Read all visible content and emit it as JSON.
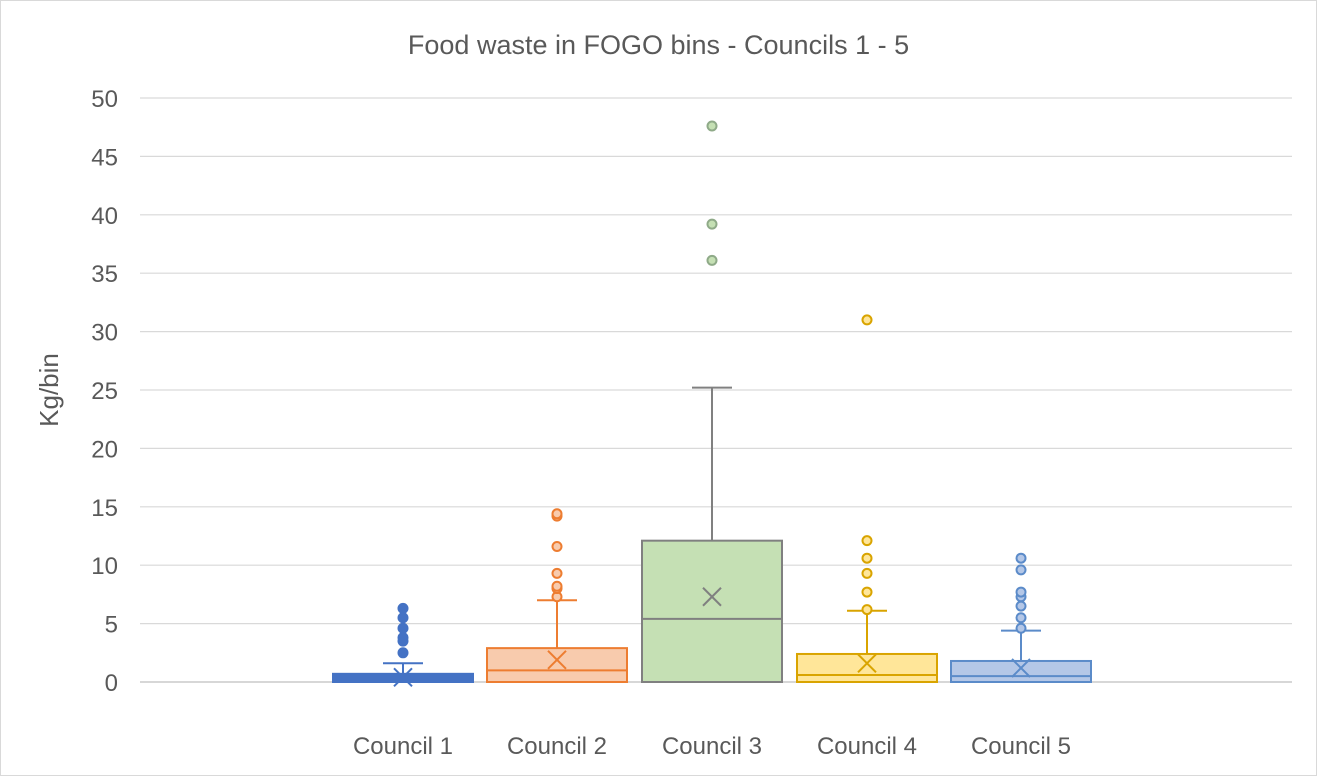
{
  "chart_data": {
    "type": "box",
    "title": "Food waste in FOGO bins - Councils 1 - 5",
    "xlabel": "",
    "ylabel": "Kg/bin",
    "ylim": [
      0,
      50
    ],
    "yticks": [
      0,
      5,
      10,
      15,
      20,
      25,
      30,
      35,
      40,
      45,
      50
    ],
    "grid": true,
    "categories": [
      "Council 1",
      "Council 2",
      "Council 3",
      "Council 4",
      "Council 5"
    ],
    "series": [
      {
        "category": "Council 1",
        "color": "#4472C4",
        "fill": "#4472C4",
        "min": 0,
        "q1": 0,
        "median": 0.3,
        "q3": 0.7,
        "max": 1.6,
        "mean": 0.4,
        "outliers": [
          2.5,
          3.5,
          3.8,
          4.6,
          5.5,
          6.3
        ]
      },
      {
        "category": "Council 2",
        "color": "#ED7D31",
        "fill": "#F8CBAD",
        "min": 0,
        "q1": 0,
        "median": 1.0,
        "q3": 2.9,
        "max": 7.0,
        "mean": 1.9,
        "outliers": [
          7.3,
          8.0,
          8.2,
          9.3,
          11.6,
          14.2,
          14.4
        ]
      },
      {
        "category": "Council 3",
        "color": "#808080",
        "fill": "#C5E0B4",
        "min": 0,
        "q1": 0,
        "median": 5.4,
        "q3": 12.1,
        "max": 25.2,
        "mean": 7.3,
        "outliers": [
          36.1,
          39.2,
          47.6
        ],
        "outlier_color": "#8FAA88"
      },
      {
        "category": "Council 4",
        "color": "#D9A400",
        "fill": "#FFE699",
        "min": 0,
        "q1": 0,
        "median": 0.6,
        "q3": 2.4,
        "max": 6.1,
        "mean": 1.6,
        "outliers": [
          6.2,
          7.7,
          9.3,
          10.6,
          12.1,
          31.0
        ]
      },
      {
        "category": "Council 5",
        "color": "#5B8BC9",
        "fill": "#B4C7E7",
        "min": 0,
        "q1": 0,
        "median": 0.5,
        "q3": 1.8,
        "max": 4.4,
        "mean": 1.2,
        "outliers": [
          4.6,
          5.5,
          6.5,
          7.3,
          7.7,
          9.6,
          10.6
        ]
      }
    ]
  }
}
